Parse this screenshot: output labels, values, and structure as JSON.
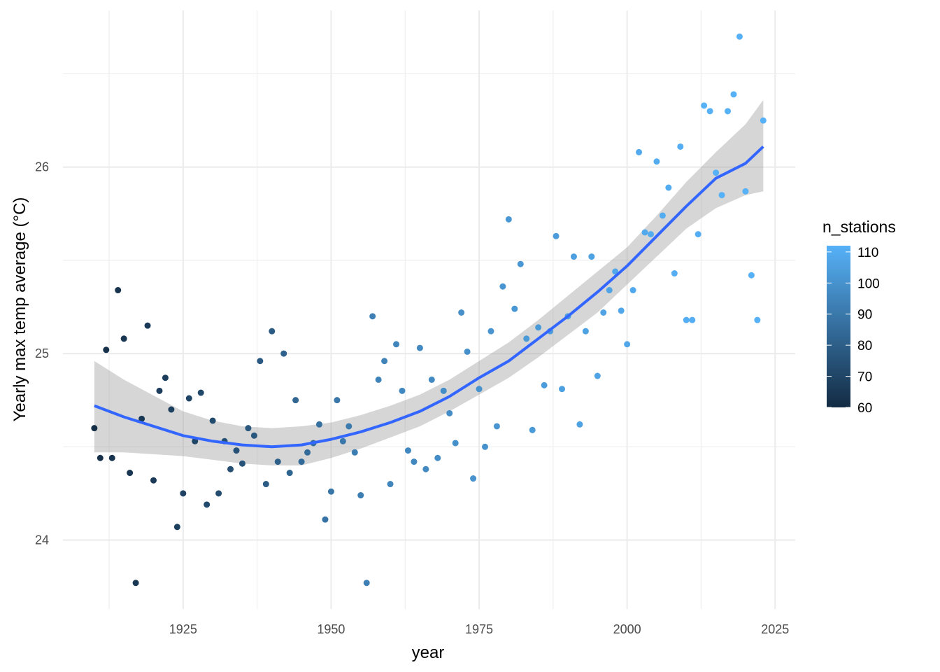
{
  "chart_data": {
    "type": "scatter",
    "x_label": "year",
    "y_label": "Yearly max temp average (°C)",
    "x": [
      1910,
      1911,
      1912,
      1913,
      1914,
      1915,
      1916,
      1917,
      1918,
      1919,
      1920,
      1921,
      1922,
      1923,
      1924,
      1925,
      1926,
      1927,
      1928,
      1929,
      1930,
      1931,
      1932,
      1933,
      1934,
      1935,
      1936,
      1937,
      1938,
      1939,
      1940,
      1941,
      1942,
      1943,
      1944,
      1945,
      1946,
      1947,
      1948,
      1949,
      1950,
      1951,
      1952,
      1953,
      1954,
      1955,
      1956,
      1957,
      1958,
      1959,
      1960,
      1961,
      1962,
      1963,
      1964,
      1965,
      1966,
      1967,
      1968,
      1969,
      1970,
      1971,
      1972,
      1973,
      1974,
      1975,
      1976,
      1977,
      1978,
      1979,
      1980,
      1981,
      1982,
      1983,
      1984,
      1985,
      1986,
      1987,
      1988,
      1989,
      1990,
      1991,
      1992,
      1993,
      1994,
      1995,
      1996,
      1997,
      1998,
      1999,
      2000,
      2001,
      2002,
      2003,
      2004,
      2005,
      2006,
      2007,
      2008,
      2009,
      2010,
      2011,
      2012,
      2013,
      2014,
      2015,
      2016,
      2017,
      2018,
      2019,
      2020,
      2021,
      2022,
      2023
    ],
    "values": [
      24.6,
      24.44,
      25.02,
      24.44,
      25.34,
      25.08,
      24.36,
      23.77,
      24.65,
      25.15,
      24.32,
      24.8,
      24.87,
      24.7,
      24.07,
      24.25,
      24.76,
      24.53,
      24.79,
      24.19,
      24.64,
      24.25,
      24.53,
      24.38,
      24.48,
      24.41,
      24.6,
      24.56,
      24.96,
      24.3,
      25.12,
      24.42,
      25.0,
      24.36,
      24.75,
      24.42,
      24.47,
      24.52,
      24.62,
      24.11,
      24.26,
      24.75,
      24.53,
      24.61,
      24.47,
      24.24,
      23.77,
      25.2,
      24.86,
      24.96,
      24.3,
      25.05,
      24.8,
      24.48,
      24.42,
      25.03,
      24.38,
      24.86,
      24.44,
      24.8,
      24.68,
      24.52,
      25.22,
      25.01,
      24.33,
      24.81,
      24.5,
      25.12,
      24.61,
      25.36,
      25.72,
      25.24,
      25.48,
      25.08,
      24.59,
      25.14,
      24.83,
      25.12,
      25.63,
      24.81,
      25.2,
      25.52,
      24.62,
      25.12,
      25.52,
      24.88,
      25.22,
      25.34,
      25.44,
      25.23,
      25.05,
      25.34,
      26.08,
      25.65,
      25.64,
      26.03,
      25.74,
      25.89,
      25.43,
      26.11,
      25.18,
      25.18,
      25.64,
      26.33,
      26.3,
      25.97,
      25.85,
      26.3,
      26.39,
      26.7,
      25.87,
      25.42,
      25.18,
      26.25
    ],
    "color_values": [
      61,
      62,
      62,
      63,
      63,
      64,
      64,
      65,
      65,
      66,
      66,
      67,
      67,
      68,
      68,
      69,
      70,
      70,
      71,
      72,
      72,
      73,
      74,
      74,
      75,
      76,
      77,
      77,
      78,
      79,
      79,
      80,
      81,
      82,
      83,
      84,
      85,
      86,
      87,
      88,
      89,
      90,
      90,
      91,
      92,
      92,
      93,
      93,
      94,
      94,
      95,
      95,
      96,
      96,
      96,
      97,
      97,
      97,
      98,
      98,
      98,
      99,
      99,
      99,
      100,
      100,
      100,
      101,
      101,
      101,
      102,
      102,
      102,
      103,
      103,
      103,
      104,
      104,
      104,
      105,
      105,
      105,
      106,
      106,
      106,
      107,
      107,
      107,
      108,
      108,
      108,
      109,
      109,
      109,
      110,
      110,
      110,
      110,
      111,
      111,
      111,
      111,
      111,
      112,
      112,
      112,
      112,
      112,
      112,
      112,
      112,
      112,
      112,
      112
    ],
    "color_title": "n_stations",
    "color_low": "#132B43",
    "color_high": "#56B1F7",
    "clim": [
      60,
      112
    ],
    "cticks": [
      60,
      70,
      80,
      90,
      100,
      110
    ],
    "smooth": {
      "color": "#3366FF",
      "band_color": "#999999",
      "band_opacity": 0.4,
      "x": [
        1910,
        1915,
        1925,
        1930,
        1935,
        1940,
        1945,
        1950,
        1955,
        1960,
        1965,
        1970,
        1975,
        1980,
        1985,
        1990,
        1995,
        2000,
        2005,
        2010,
        2015,
        2020,
        2023
      ],
      "values": [
        24.72,
        24.66,
        24.56,
        24.53,
        24.51,
        24.5,
        24.51,
        24.54,
        24.58,
        24.63,
        24.69,
        24.77,
        24.87,
        24.96,
        25.08,
        25.2,
        25.33,
        25.47,
        25.63,
        25.79,
        25.94,
        26.02,
        26.11
      ],
      "upper": [
        24.96,
        24.86,
        24.69,
        24.64,
        24.61,
        24.6,
        24.61,
        24.63,
        24.67,
        24.72,
        24.78,
        24.86,
        24.96,
        25.06,
        25.18,
        25.31,
        25.44,
        25.57,
        25.74,
        25.92,
        26.08,
        26.23,
        26.36
      ],
      "lower": [
        24.47,
        24.47,
        24.45,
        24.43,
        24.41,
        24.4,
        24.4,
        24.44,
        24.49,
        24.55,
        24.61,
        24.69,
        24.78,
        24.87,
        24.98,
        25.1,
        25.22,
        25.37,
        25.52,
        25.67,
        25.78,
        25.85,
        25.87
      ]
    },
    "xlim": [
      1904.7,
      2028.4
    ],
    "ylim": [
      23.63,
      26.84
    ],
    "xticks": [
      1925,
      1950,
      1975,
      2000,
      2025
    ],
    "yticks": [
      24,
      25,
      26
    ],
    "xminor": [
      1912.5,
      1937.5,
      1962.5,
      1987.5,
      2012.5
    ],
    "yminor": [
      24.5,
      25.5,
      26.5
    ],
    "grid": true
  }
}
